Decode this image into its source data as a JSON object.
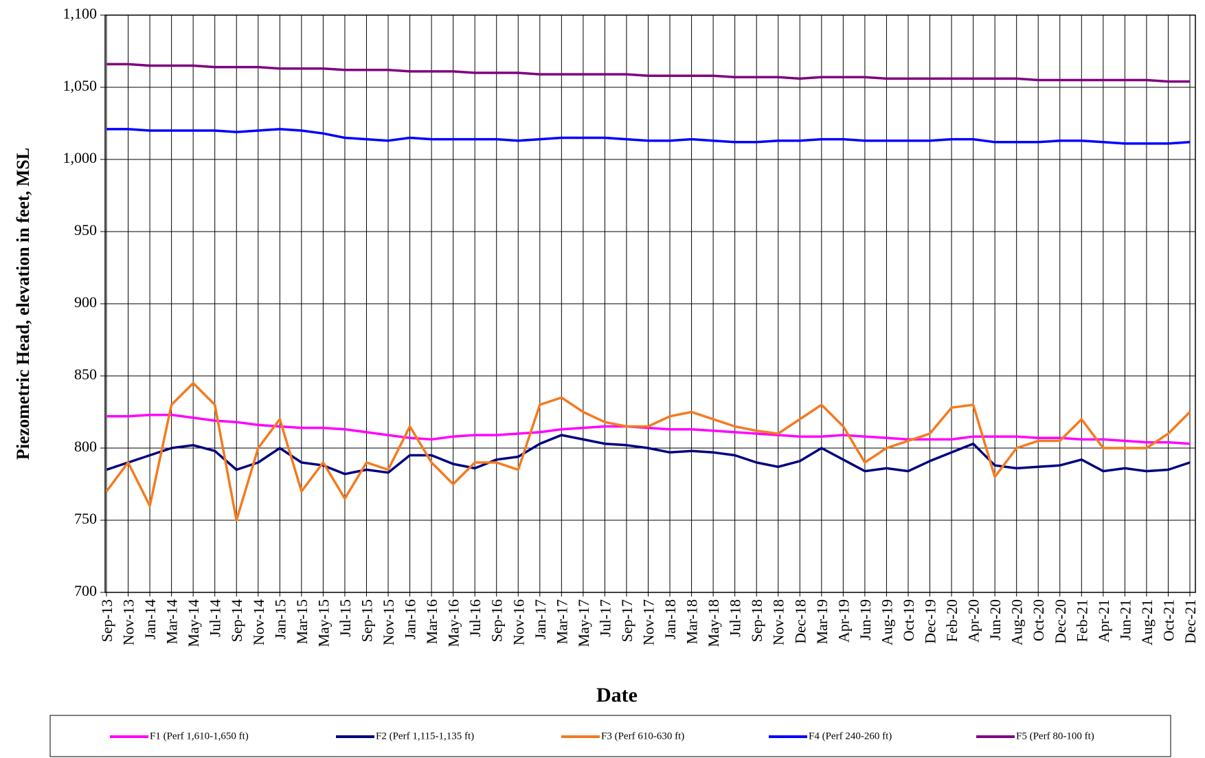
{
  "chart_data": {
    "type": "line",
    "xlabel": "Date",
    "ylabel": "Piezometric Head, elevation in feet, MSL",
    "categories": [
      "Sep-13",
      "Nov-13",
      "Jan-14",
      "Mar-14",
      "May-14",
      "Jul-14",
      "Sep-14",
      "Nov-14",
      "Jan-15",
      "Mar-15",
      "May-15",
      "Jul-15",
      "Sep-15",
      "Nov-15",
      "Jan-16",
      "Mar-16",
      "May-16",
      "Jul-16",
      "Sep-16",
      "Nov-16",
      "Jan-17",
      "Mar-17",
      "May-17",
      "Jul-17",
      "Sep-17",
      "Nov-17",
      "Jan-18",
      "Mar-18",
      "May-18",
      "Jul-18",
      "Sep-18",
      "Nov-18",
      "Dec-18",
      "Mar-19",
      "Apr-19",
      "Jun-19",
      "Aug-19",
      "Oct-19",
      "Dec-19",
      "Feb-20",
      "Apr-20",
      "Jun-20",
      "Aug-20",
      "Oct-20",
      "Dec-20",
      "Feb-21",
      "Apr-21",
      "Jun-21",
      "Aug-21",
      "Oct-21",
      "Dec-21"
    ],
    "series": [
      {
        "name": "F1 (Perf 1,610-1,650 ft)",
        "color": "#ff00ff",
        "values": [
          822,
          822,
          823,
          823,
          821,
          819,
          818,
          816,
          815,
          814,
          814,
          813,
          811,
          809,
          807,
          806,
          808,
          809,
          809,
          810,
          811,
          813,
          814,
          815,
          815,
          814,
          813,
          813,
          812,
          811,
          810,
          809,
          808,
          808,
          809,
          808,
          807,
          806,
          806,
          806,
          808,
          808,
          808,
          807,
          807,
          806,
          806,
          805,
          804,
          804,
          803
        ]
      },
      {
        "name": "F2 (Perf 1,115-1,135 ft)",
        "color": "#000080",
        "values": [
          785,
          790,
          795,
          800,
          802,
          798,
          785,
          790,
          800,
          790,
          788,
          782,
          785,
          783,
          795,
          795,
          789,
          786,
          792,
          794,
          803,
          809,
          806,
          803,
          802,
          800,
          797,
          798,
          797,
          795,
          790,
          787,
          791,
          800,
          792,
          784,
          786,
          784,
          791,
          797,
          803,
          788,
          786,
          787,
          788,
          792,
          784,
          786,
          784,
          785,
          790
        ]
      },
      {
        "name": "F3 (Perf 610-630 ft)",
        "color": "#f47a1f",
        "values": [
          770,
          790,
          760,
          830,
          845,
          830,
          750,
          800,
          820,
          770,
          790,
          765,
          790,
          785,
          815,
          790,
          775,
          790,
          790,
          785,
          830,
          835,
          825,
          818,
          815,
          815,
          822,
          825,
          820,
          815,
          812,
          810,
          820,
          830,
          815,
          790,
          800,
          805,
          810,
          828,
          830,
          780,
          800,
          805,
          805,
          820,
          800,
          800,
          800,
          810,
          825
        ]
      },
      {
        "name": "F4 (Perf 240-260 ft)",
        "color": "#0000ff",
        "values": [
          1021,
          1021,
          1020,
          1020,
          1020,
          1020,
          1019,
          1020,
          1021,
          1020,
          1018,
          1015,
          1014,
          1013,
          1015,
          1014,
          1014,
          1014,
          1014,
          1013,
          1014,
          1015,
          1015,
          1015,
          1014,
          1013,
          1013,
          1014,
          1013,
          1012,
          1012,
          1013,
          1013,
          1014,
          1014,
          1013,
          1013,
          1013,
          1013,
          1014,
          1014,
          1012,
          1012,
          1012,
          1013,
          1013,
          1012,
          1011,
          1011,
          1011,
          1012
        ]
      },
      {
        "name": "F5 (Perf 80-100 ft)",
        "color": "#800080",
        "values": [
          1066,
          1066,
          1065,
          1065,
          1065,
          1064,
          1064,
          1064,
          1063,
          1063,
          1063,
          1062,
          1062,
          1062,
          1061,
          1061,
          1061,
          1060,
          1060,
          1060,
          1059,
          1059,
          1059,
          1059,
          1059,
          1058,
          1058,
          1058,
          1058,
          1057,
          1057,
          1057,
          1056,
          1057,
          1057,
          1057,
          1056,
          1056,
          1056,
          1056,
          1056,
          1056,
          1056,
          1055,
          1055,
          1055,
          1055,
          1055,
          1055,
          1054,
          1054
        ]
      }
    ],
    "ylim": [
      700,
      1100
    ],
    "yticks": [
      700,
      750,
      800,
      850,
      900,
      950,
      {
        "value": 1000,
        "label": "1,000"
      },
      {
        "value": 1050,
        "label": "1,050"
      },
      {
        "value": 1100,
        "label": "1,100"
      }
    ],
    "grid": true
  }
}
